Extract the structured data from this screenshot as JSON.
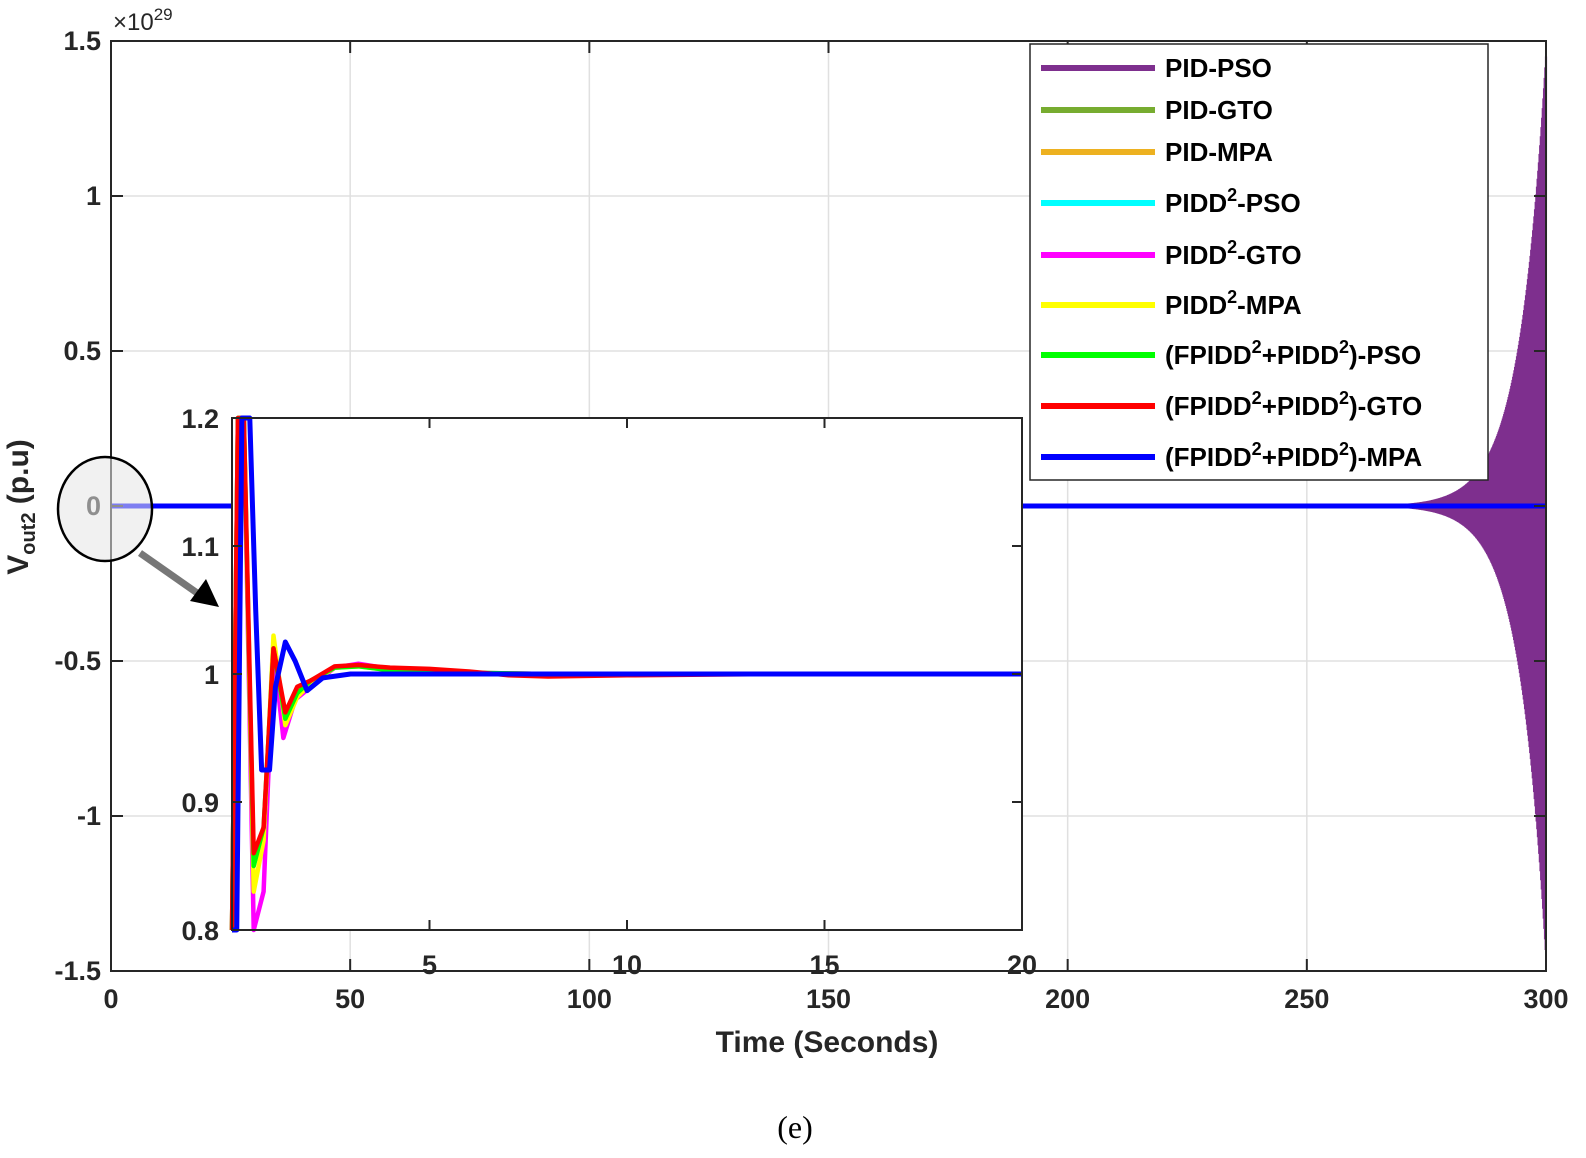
{
  "figure": {
    "caption": "(e)"
  },
  "colors": {
    "PID-PSO": "#7e2f8e",
    "PID-GTO": "#77ac30",
    "PID-MPA": "#edb120",
    "PIDD2-PSO": "#00ffff",
    "PIDD2-GTO": "#ff00ff",
    "PIDD2-MPA": "#ffff00",
    "FPIDD2+PIDD2-PSO": "#00ff00",
    "FPIDD2+PIDD2-GTO": "#ff0000",
    "FPIDD2+PIDD2-MPA": "#0000ff"
  },
  "chart_data": [
    {
      "id": "main",
      "type": "line",
      "xlabel": "Time (Seconds)",
      "ylabel_main": "V",
      "ylabel_sub": "out2",
      "ylabel_unit": "(p.u)",
      "xlim": [
        0,
        300
      ],
      "ylim": [
        -1.5,
        1.5
      ],
      "y_exponent_base": "×10",
      "y_exponent": "29",
      "xticks": [
        "0",
        "50",
        "100",
        "150",
        "200",
        "250",
        "300"
      ],
      "yticks": [
        "-1.5",
        "-1",
        "-0.5",
        "0",
        "0.5",
        "1",
        "1.5"
      ],
      "grid": true,
      "legend_position": "top-right",
      "legend": [
        {
          "key": "PID-PSO",
          "parts": [
            [
              "PID-PSO",
              false
            ]
          ]
        },
        {
          "key": "PID-GTO",
          "parts": [
            [
              "PID-GTO",
              false
            ]
          ]
        },
        {
          "key": "PID-MPA",
          "parts": [
            [
              "PID-MPA",
              false
            ]
          ]
        },
        {
          "key": "PIDD2-PSO",
          "parts": [
            [
              "PIDD",
              false
            ],
            [
              "2",
              true
            ],
            [
              "-PSO",
              false
            ]
          ]
        },
        {
          "key": "PIDD2-GTO",
          "parts": [
            [
              "PIDD",
              false
            ],
            [
              "2",
              true
            ],
            [
              "-GTO",
              false
            ]
          ]
        },
        {
          "key": "PIDD2-MPA",
          "parts": [
            [
              "PIDD",
              false
            ],
            [
              "2",
              true
            ],
            [
              "-MPA",
              false
            ]
          ]
        },
        {
          "key": "FPIDD2+PIDD2-PSO",
          "parts": [
            [
              "(FPIDD",
              false
            ],
            [
              "2",
              true
            ],
            [
              "+PIDD",
              false
            ],
            [
              "2",
              true
            ],
            [
              ")-PSO",
              false
            ]
          ]
        },
        {
          "key": "FPIDD2+PIDD2-GTO",
          "parts": [
            [
              "(FPIDD",
              false
            ],
            [
              "2",
              true
            ],
            [
              "+PIDD",
              false
            ],
            [
              "2",
              true
            ],
            [
              ")-GTO",
              false
            ]
          ]
        },
        {
          "key": "FPIDD2+PIDD2-MPA",
          "parts": [
            [
              "(FPIDD",
              false
            ],
            [
              "2",
              true
            ],
            [
              "+PIDD",
              false
            ],
            [
              "2",
              true
            ],
            [
              ")-MPA",
              false
            ]
          ]
        }
      ],
      "series": [
        {
          "key": "PID-PSO",
          "behavior": "oscillation growing from about t=265 s to ±1.45e29 at t=300 s"
        },
        {
          "key": "FPIDD2+PIDD2-MPA",
          "x": [
            0,
            300
          ],
          "y": [
            0,
            0
          ]
        }
      ]
    },
    {
      "id": "inset",
      "type": "line",
      "xlim": [
        0,
        20
      ],
      "ylim": [
        0.8,
        1.2
      ],
      "xticks": [
        "5",
        "10",
        "15",
        "20"
      ],
      "yticks": [
        "0.8",
        "0.9",
        "1",
        "1.1",
        "1.2"
      ],
      "grid": false,
      "series": [
        {
          "key": "PIDD2-GTO",
          "x": [
            0,
            0.15,
            0.3,
            0.55,
            0.8,
            1.05,
            1.3,
            1.6,
            2.0,
            2.6,
            3.2,
            4,
            5,
            6,
            8,
            10,
            14,
            20
          ],
          "y": [
            0.8,
            1.2,
            1.2,
            0.8,
            0.83,
            1.02,
            0.95,
            0.98,
            0.99,
            1.005,
            1.008,
            1.004,
            1.002,
            1.001,
            1.0,
            1.0,
            1.0,
            1.0
          ]
        },
        {
          "key": "PIDD2-MPA",
          "x": [
            0,
            0.15,
            0.3,
            0.55,
            0.8,
            1.05,
            1.35,
            1.65,
            2.0,
            2.6,
            3.2,
            4,
            5,
            6,
            8,
            10,
            14,
            20
          ],
          "y": [
            0.8,
            1.2,
            1.2,
            0.83,
            0.87,
            1.03,
            0.96,
            0.982,
            0.993,
            1.005,
            1.006,
            1.003,
            1.002,
            1.001,
            1.0,
            1.0,
            1.0,
            1.0
          ]
        },
        {
          "key": "FPIDD2+PIDD2-PSO",
          "x": [
            0,
            0.15,
            0.3,
            0.55,
            0.8,
            1.05,
            1.35,
            1.65,
            2.0,
            2.6,
            3.2,
            4,
            5,
            6,
            8,
            10,
            14,
            20
          ],
          "y": [
            0.8,
            1.2,
            1.2,
            0.85,
            0.88,
            1.02,
            0.965,
            0.985,
            0.995,
            1.005,
            1.006,
            1.003,
            1.002,
            1.001,
            1.0,
            1.0,
            1.0,
            1.0
          ]
        },
        {
          "key": "FPIDD2+PIDD2-GTO",
          "x": [
            0,
            0.15,
            0.3,
            0.55,
            0.8,
            1.05,
            1.35,
            1.65,
            2.0,
            2.6,
            3.2,
            4,
            5,
            6,
            7,
            8,
            10,
            14,
            20
          ],
          "y": [
            0.8,
            1.2,
            1.2,
            0.86,
            0.88,
            1.02,
            0.97,
            0.99,
            0.995,
            1.006,
            1.007,
            1.005,
            1.004,
            1.002,
            0.999,
            0.998,
            0.999,
            1.0,
            1.0
          ]
        },
        {
          "key": "FPIDD2+PIDD2-MPA",
          "x": [
            0,
            0.12,
            0.25,
            0.45,
            0.6,
            0.75,
            0.95,
            1.1,
            1.35,
            1.6,
            1.9,
            2.3,
            3,
            4,
            6,
            10,
            14,
            20
          ],
          "y": [
            0.8,
            0.8,
            1.2,
            1.2,
            1.05,
            0.925,
            0.925,
            0.99,
            1.025,
            1.01,
            0.987,
            0.997,
            1.0,
            1.0,
            1.0,
            1.0,
            1.0,
            1.0
          ]
        }
      ]
    }
  ]
}
